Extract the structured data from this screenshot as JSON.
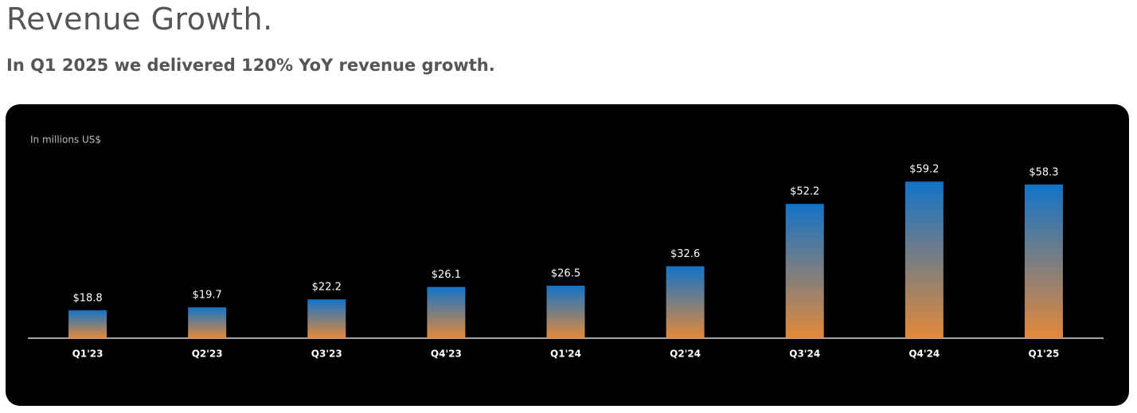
{
  "chart_data": {
    "type": "bar",
    "title": "Revenue Growth.",
    "subtitle": "In Q1 2025 we delivered 120% YoY revenue growth.",
    "note": "In millions US$",
    "categories": [
      "Q1'23",
      "Q2'23",
      "Q3'23",
      "Q4'23",
      "Q1'24",
      "Q2'24",
      "Q3'24",
      "Q4'24",
      "Q1'25"
    ],
    "values": [
      18.8,
      19.7,
      22.2,
      26.1,
      26.5,
      32.6,
      52.2,
      59.2,
      58.3
    ],
    "value_labels": [
      "$18.8",
      "$19.7",
      "$22.2",
      "$26.1",
      "$26.5",
      "$32.6",
      "$52.2",
      "$59.2",
      "$58.3"
    ],
    "gradient": [
      "#1273c8",
      "#e3893a"
    ],
    "ylim": [
      10,
      60
    ]
  }
}
